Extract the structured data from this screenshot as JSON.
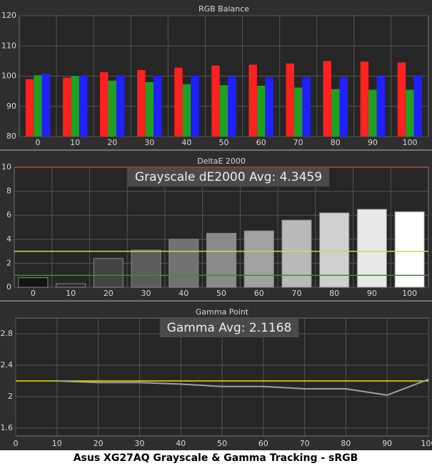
{
  "chart_data": [
    {
      "type": "grouped-bar",
      "title": "RGB Balance",
      "categories": [
        0,
        10,
        20,
        30,
        40,
        50,
        60,
        70,
        80,
        90,
        100
      ],
      "series": [
        {
          "color": "#ff2020",
          "values": [
            99,
            99.5,
            101.3,
            102,
            102.8,
            103.5,
            103.8,
            104.2,
            105,
            104.8,
            104.5
          ]
        },
        {
          "color": "#20a020",
          "values": [
            100.3,
            100,
            98.5,
            98,
            97.3,
            97,
            96.8,
            96.2,
            95.7,
            95.5,
            95.5
          ]
        },
        {
          "color": "#2020ff",
          "values": [
            100.8,
            100.3,
            100.3,
            100.1,
            100.1,
            99.9,
            99.7,
            99.7,
            99.7,
            100,
            100.3
          ]
        }
      ],
      "ylim": [
        80,
        120
      ],
      "yticks": [
        80,
        90,
        100,
        110,
        120
      ],
      "grid": true
    },
    {
      "type": "bar",
      "title": "DeltaE 2000",
      "annotation": "Grayscale dE2000 Avg: 4.3459",
      "categories": [
        0,
        10,
        20,
        30,
        40,
        50,
        60,
        70,
        80,
        90,
        100
      ],
      "values": [
        0.8,
        0.3,
        2.4,
        3.1,
        4.0,
        4.5,
        4.7,
        5.6,
        6.2,
        6.5,
        6.3
      ],
      "ylim": [
        0,
        10
      ],
      "yticks": [
        0,
        2,
        4,
        6,
        8,
        10
      ],
      "grid": true,
      "reference_lines": [
        {
          "value": 10,
          "color": "#e03030"
        },
        {
          "value": 3,
          "color": "#e0e000"
        },
        {
          "value": 1,
          "color": "#20a020"
        }
      ]
    },
    {
      "type": "line",
      "title": "Gamma Point",
      "annotation": "Gamma Avg: 2.1168",
      "x": [
        0,
        10,
        20,
        30,
        40,
        50,
        60,
        70,
        80,
        90,
        100
      ],
      "values": [
        null,
        2.2,
        2.18,
        2.18,
        2.16,
        2.13,
        2.13,
        2.1,
        2.1,
        2.02,
        2.22
      ],
      "color": "#a0a0a0",
      "xlim": [
        0,
        100
      ],
      "xticks": [
        0,
        10,
        20,
        30,
        40,
        50,
        60,
        70,
        80,
        90,
        100
      ],
      "ylim": [
        1.5,
        3.0
      ],
      "yticks": [
        1.6,
        2,
        2.4,
        2.8
      ],
      "grid": true,
      "reference_lines": [
        {
          "value": 2.2,
          "color": "#e8e800"
        }
      ]
    }
  ],
  "caption": "Asus XG27AQ Grayscale & Gamma Tracking - sRGB"
}
